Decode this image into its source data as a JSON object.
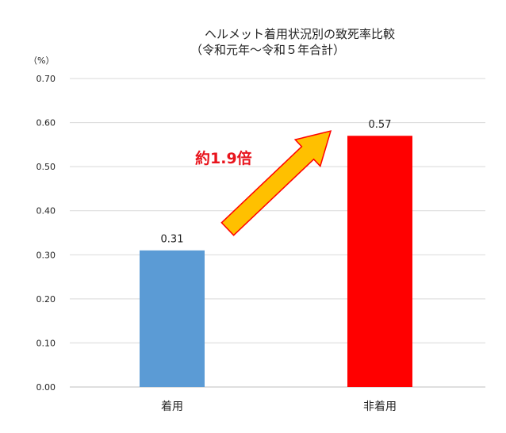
{
  "chart_data": {
    "type": "bar",
    "title_line1": "ヘルメット着用状況別の致死率比較",
    "title_line2": "（令和元年～令和５年合計）",
    "y_unit": "（%）",
    "categories": [
      "着用",
      "非着用"
    ],
    "values": [
      0.31,
      0.57
    ],
    "data_labels": [
      "0.31",
      "0.57"
    ],
    "bar_colors": [
      "#5b9bd5",
      "#ff0000"
    ],
    "ylim": [
      0,
      0.7
    ],
    "yticks": [
      "0.00",
      "0.10",
      "0.20",
      "0.30",
      "0.40",
      "0.50",
      "0.60",
      "0.70"
    ],
    "grid": true,
    "legend": "none",
    "annotation": {
      "text": "約1.9倍",
      "color": "#e8141c",
      "arrow_fill": "#ffc000",
      "arrow_stroke": "#ff0000",
      "from_category": "着用",
      "to_category": "非着用"
    }
  }
}
